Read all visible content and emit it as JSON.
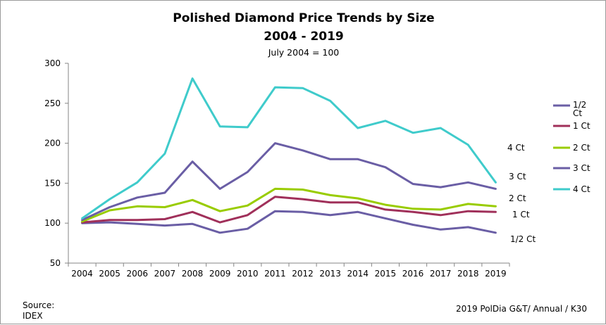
{
  "chart_data": {
    "type": "line",
    "title": "Polished Diamond Price Trends by Size",
    "title_line2": "2004 - 2019",
    "subtitle": "July 2004 = 100",
    "xlabel": "",
    "ylabel": "",
    "ylim": [
      50,
      300
    ],
    "yticks": [
      50,
      100,
      150,
      200,
      250,
      300
    ],
    "grid": false,
    "legend_position": "right",
    "categories": [
      "2004",
      "2005",
      "2006",
      "2007",
      "2008",
      "2009",
      "2010",
      "2011",
      "2012",
      "2013",
      "2014",
      "2015",
      "2016",
      "2017",
      "2018",
      "2019"
    ],
    "series": [
      {
        "name": "1/2 Ct",
        "color": "#6A5EA5",
        "end_label": "1/2 Ct",
        "values": [
          100,
          101,
          99,
          97,
          99,
          88,
          93,
          115,
          114,
          110,
          114,
          106,
          98,
          92,
          95,
          88
        ]
      },
      {
        "name": "1 Ct",
        "color": "#A0305A",
        "end_label": "1 Ct",
        "values": [
          101,
          104,
          104,
          105,
          114,
          101,
          110,
          133,
          130,
          126,
          126,
          117,
          114,
          110,
          115,
          114
        ]
      },
      {
        "name": "2 Ct",
        "color": "#99CC00",
        "end_label": "2 Ct",
        "values": [
          102,
          116,
          121,
          120,
          129,
          115,
          122,
          143,
          142,
          135,
          131,
          123,
          118,
          117,
          124,
          121
        ]
      },
      {
        "name": "3 Ct",
        "color": "#6A5EA5",
        "end_label": "3 Ct",
        "values": [
          104,
          120,
          132,
          138,
          177,
          143,
          164,
          200,
          191,
          180,
          180,
          170,
          149,
          145,
          151,
          143
        ]
      },
      {
        "name": "4 Ct",
        "color": "#3FCBCB",
        "end_label": "4 Ct",
        "values": [
          106,
          130,
          151,
          187,
          281,
          221,
          220,
          270,
          269,
          253,
          219,
          228,
          213,
          219,
          198,
          151
        ]
      }
    ]
  },
  "source_label": "Source:",
  "source_value": "IDEX",
  "footer": "2019 PolDia G&T/ Annual / K30"
}
